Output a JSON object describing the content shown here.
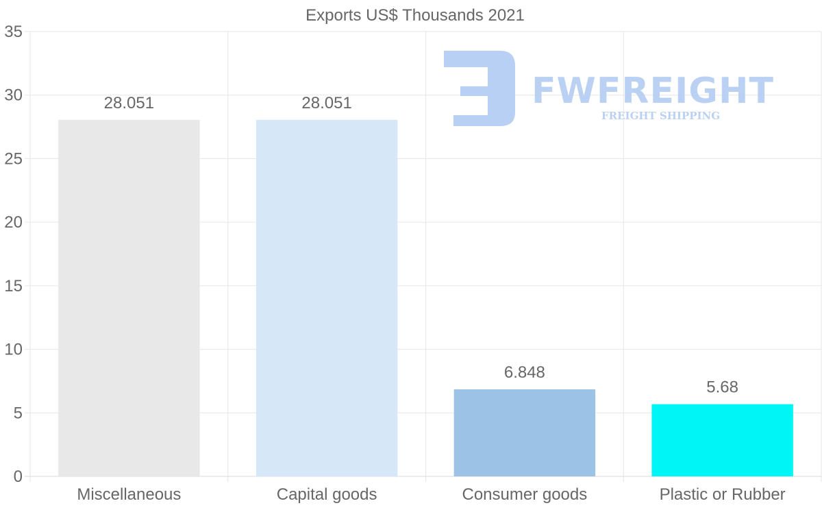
{
  "chart_data": {
    "type": "bar",
    "title": "Exports US$ Thousands 2021",
    "categories": [
      "Miscellaneous",
      "Capital goods",
      "Consumer goods",
      "Plastic or Rubber"
    ],
    "values": [
      28.051,
      28.051,
      6.848,
      5.68
    ],
    "value_labels": [
      "28.051",
      "28.051",
      "6.848",
      "5.68"
    ],
    "bar_colors": [
      "#e8e8e8",
      "#d6e7f8",
      "#9cc3e6",
      "#00f5f7"
    ],
    "ylim": [
      0,
      35
    ],
    "yticks": [
      "0",
      "5",
      "10",
      "15",
      "20",
      "25",
      "30",
      "35"
    ],
    "xlabel": "",
    "ylabel": "",
    "grid": true
  },
  "watermark": {
    "brand": "FWFREIGHT",
    "tagline": "FREIGHT SHIPPING",
    "color": "#b7cff3"
  }
}
